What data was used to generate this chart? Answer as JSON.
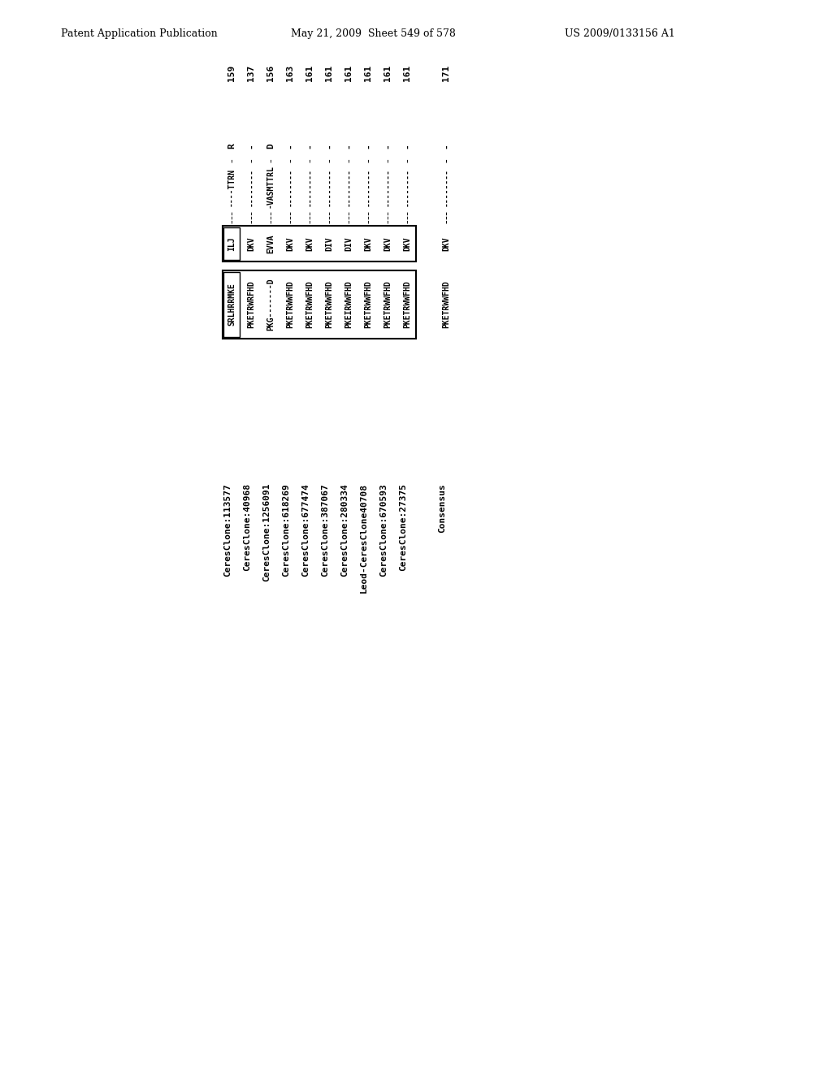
{
  "header_left": "Patent Application Publication",
  "header_mid": "May 21, 2009  Sheet 549 of 578",
  "header_right": "US 2009/0133156 A1",
  "header_fontsize": 9,
  "num_row": [
    "159",
    "137",
    "156",
    "163",
    "161",
    "161",
    "161",
    "161",
    "161",
    "161",
    "171"
  ],
  "num_x_offset": [
    0,
    1,
    2,
    3,
    4,
    5,
    6,
    7,
    8,
    9,
    11
  ],
  "sequences": [
    {
      "box1": "SRLHRRMKE",
      "box2": "ILJ",
      "mid": "----TTRN",
      "right": "R"
    },
    {
      "box1": "PKETRWRFHD",
      "box2": "DKV",
      "mid": "--------",
      "right": "-"
    },
    {
      "box1": "PKG-------D",
      "box2": "EVVA",
      "mid": "-VASMTTRL",
      "right": "D"
    },
    {
      "box1": "PKETRWWFHD",
      "box2": "DKV",
      "mid": "--------",
      "right": "-"
    },
    {
      "box1": "PKETRWWFHD",
      "box2": "DKV",
      "mid": "--------",
      "right": "-"
    },
    {
      "box1": "PKETRWWFHD",
      "box2": "DIV",
      "mid": "--------",
      "right": "-"
    },
    {
      "box1": "PKEIRWWFHD",
      "box2": "DIV",
      "mid": "--------",
      "right": "-"
    },
    {
      "box1": "PKETRWWFHD",
      "box2": "DKV",
      "mid": "--------",
      "right": "-"
    },
    {
      "box1": "PKETRWWFHD",
      "box2": "DKV",
      "mid": "--------",
      "right": "-"
    },
    {
      "box1": "PKETRWWFHD",
      "box2": "DKV",
      "mid": "--------",
      "right": "-"
    }
  ],
  "consensus": {
    "box1": "PKETRWWFHD",
    "box2": "DKV",
    "mid": "--------",
    "right": "-"
  },
  "labels": [
    "CeresClone:113577",
    "CeresClone:40968",
    "CeresClone:1256091",
    "CeresClone:618269",
    "CeresClone:677474",
    "CeresClone:387067",
    "CeresClone:280334",
    "Leod-CeresClone40708",
    "CeresClone:670593",
    "CeresClone:27375"
  ],
  "consensus_label": "Consensus",
  "bg_color": "#ffffff",
  "text_color": "#000000"
}
